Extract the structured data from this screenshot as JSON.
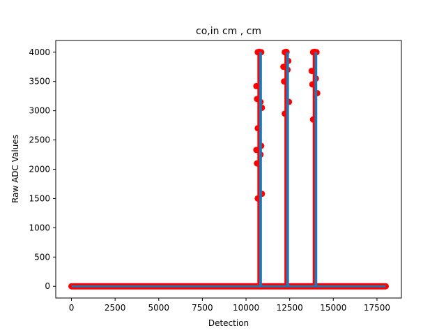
{
  "chart_data": {
    "type": "scatter",
    "title": "co,in cm , cm",
    "xlabel": "Detection",
    "ylabel": "Raw ADC Values",
    "xlim": [
      -900,
      18900
    ],
    "ylim": [
      -200,
      4200
    ],
    "xticks": [
      0,
      2500,
      5000,
      7500,
      10000,
      12500,
      15000,
      17500
    ],
    "yticks": [
      0,
      500,
      1000,
      1500,
      2000,
      2500,
      3000,
      3500,
      4000
    ],
    "grid": false,
    "baseline": {
      "x_start": 0,
      "x_end": 18000,
      "y": 0
    },
    "spikes": [
      {
        "x_start": 10750,
        "x_end": 10830,
        "peak": 4000,
        "x_values": [
          10780,
          10800,
          10830,
          10850,
          10870,
          10890,
          10900,
          10920,
          10940,
          10960,
          10980,
          11000,
          11020
        ],
        "y_values": [
          4000,
          4000,
          3420,
          3150,
          3200,
          3050,
          2700,
          2400,
          2330,
          2250,
          2100,
          1580,
          1500
        ]
      },
      {
        "x_start": 12300,
        "x_end": 12380,
        "peak": 4000,
        "x_values": [
          12330,
          12350,
          12360,
          12380,
          12400,
          12420,
          12440
        ],
        "y_values": [
          4000,
          3850,
          3750,
          3700,
          3500,
          3150,
          2950
        ]
      },
      {
        "x_start": 13920,
        "x_end": 14020,
        "peak": 4000,
        "x_values": [
          13930,
          13950,
          13970,
          14000,
          14020,
          14040,
          14060
        ],
        "y_values": [
          4000,
          4000,
          3680,
          3550,
          3450,
          3300,
          2850
        ]
      }
    ],
    "marker_color": "#ff0000",
    "line_color": "#1f77b4"
  }
}
